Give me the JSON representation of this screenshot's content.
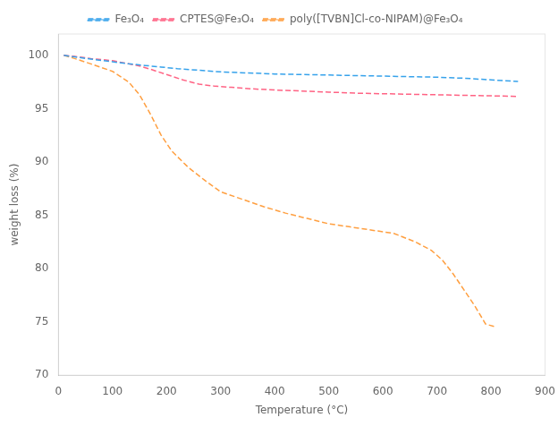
{
  "chart_data": {
    "type": "line",
    "xlabel": "Temperature (°C)",
    "ylabel": "weight loss (%)",
    "xlim": [
      0,
      900
    ],
    "ylim": [
      70,
      102
    ],
    "xticks": [
      0,
      100,
      200,
      300,
      400,
      500,
      600,
      700,
      800,
      900
    ],
    "yticks": [
      70,
      75,
      80,
      85,
      90,
      95,
      100
    ],
    "grid": false,
    "legend": "top",
    "series": [
      {
        "name": "Fe₃O₄",
        "line_style": "dashed",
        "x": [
          10,
          30,
          60,
          100,
          130,
          160,
          190,
          220,
          260,
          300,
          350,
          400,
          450,
          500,
          550,
          600,
          650,
          700,
          750,
          800,
          850
        ],
        "values": [
          100.0,
          99.85,
          99.65,
          99.4,
          99.2,
          99.05,
          98.9,
          98.75,
          98.6,
          98.45,
          98.35,
          98.25,
          98.2,
          98.15,
          98.1,
          98.05,
          98.0,
          97.95,
          97.85,
          97.7,
          97.55
        ]
      },
      {
        "name": "CPTES@Fe₃O₄",
        "line_style": "dashed",
        "x": [
          10,
          30,
          60,
          100,
          130,
          150,
          170,
          200,
          230,
          260,
          290,
          320,
          360,
          400,
          450,
          500,
          550,
          600,
          650,
          700,
          750,
          800,
          850
        ],
        "values": [
          100.0,
          99.9,
          99.7,
          99.5,
          99.2,
          99.0,
          98.7,
          98.2,
          97.7,
          97.3,
          97.1,
          97.0,
          96.85,
          96.75,
          96.65,
          96.55,
          96.45,
          96.4,
          96.35,
          96.3,
          96.25,
          96.2,
          96.15
        ]
      },
      {
        "name": "poly([TVBN]Cl-co-NIPAM)@Fe₃O₄",
        "line_style": "dashed",
        "x": [
          10,
          30,
          60,
          100,
          130,
          150,
          170,
          190,
          210,
          240,
          270,
          300,
          340,
          380,
          420,
          460,
          500,
          540,
          580,
          620,
          660,
          690,
          710,
          730,
          750,
          770,
          790,
          810
        ],
        "values": [
          100.0,
          99.7,
          99.2,
          98.5,
          97.5,
          96.3,
          94.5,
          92.5,
          91.0,
          89.5,
          88.3,
          87.2,
          86.5,
          85.8,
          85.2,
          84.7,
          84.2,
          83.9,
          83.6,
          83.3,
          82.5,
          81.7,
          80.8,
          79.5,
          78.0,
          76.5,
          74.8,
          74.5
        ]
      }
    ]
  }
}
